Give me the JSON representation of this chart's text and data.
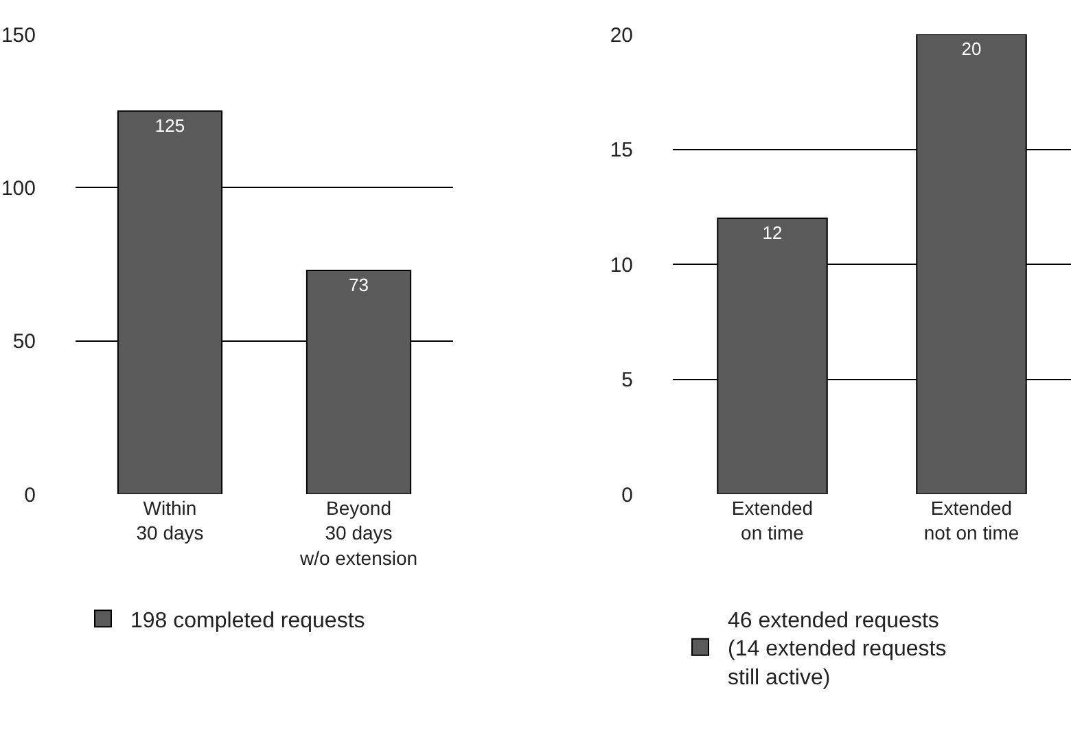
{
  "chart_data": [
    {
      "type": "bar",
      "categories": [
        "Within\n30 days",
        "Beyond\n30 days\nw/o extension"
      ],
      "series": [
        {
          "name": "198 completed requests",
          "color": "#5a5a5a",
          "values": [
            125,
            73
          ]
        }
      ],
      "ylim": [
        0,
        150
      ],
      "yticks": [
        0,
        50,
        100,
        150
      ],
      "grid": "y",
      "legend": "bottom left",
      "data_labels": true
    },
    {
      "type": "bar",
      "categories": [
        "Extended\non time",
        "Extended\nnot on time"
      ],
      "series": [
        {
          "name": "46 extended requests\n(14 extended requests\nstill active)",
          "color": "#5a5a5a",
          "values": [
            12,
            20
          ]
        }
      ],
      "ylim": [
        0,
        20
      ],
      "yticks": [
        0,
        5,
        10,
        15,
        20
      ],
      "grid": "y",
      "legend": "bottom left",
      "data_labels": true
    }
  ]
}
